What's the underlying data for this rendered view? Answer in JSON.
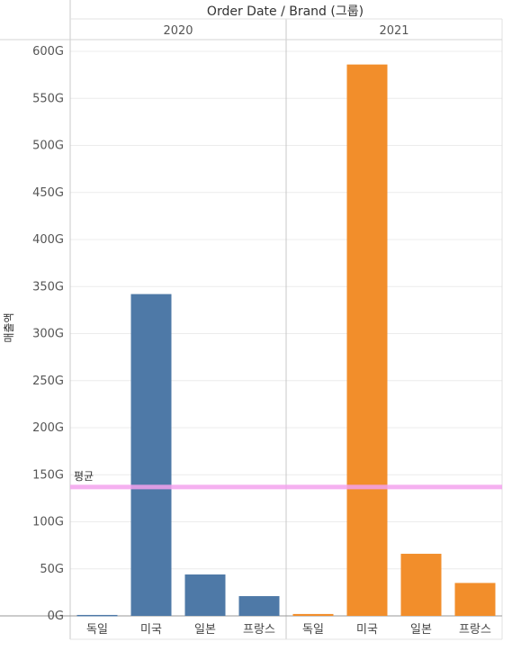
{
  "chart_data": {
    "type": "bar",
    "title": "Order Date  /  Brand (그룹)",
    "ylabel": "매출액",
    "ylim": [
      0,
      600
    ],
    "yticks": [
      0,
      50,
      100,
      150,
      200,
      250,
      300,
      350,
      400,
      450,
      500,
      550,
      600
    ],
    "ytick_labels": [
      "0G",
      "50G",
      "100G",
      "150G",
      "200G",
      "250G",
      "300G",
      "350G",
      "400G",
      "450G",
      "500G",
      "550G",
      "600G"
    ],
    "grid": true,
    "panels": [
      {
        "name": "2020",
        "color": "#4e79a7",
        "categories": [
          "독일",
          "미국",
          "일본",
          "프랑스"
        ],
        "values": [
          1,
          342,
          44,
          21
        ]
      },
      {
        "name": "2021",
        "color": "#f28e2b",
        "categories": [
          "독일",
          "미국",
          "일본",
          "프랑스"
        ],
        "values": [
          2,
          586,
          66,
          35
        ]
      }
    ],
    "reference_line": {
      "label": "평균",
      "value": 137,
      "color": "#f4a3ee"
    }
  }
}
